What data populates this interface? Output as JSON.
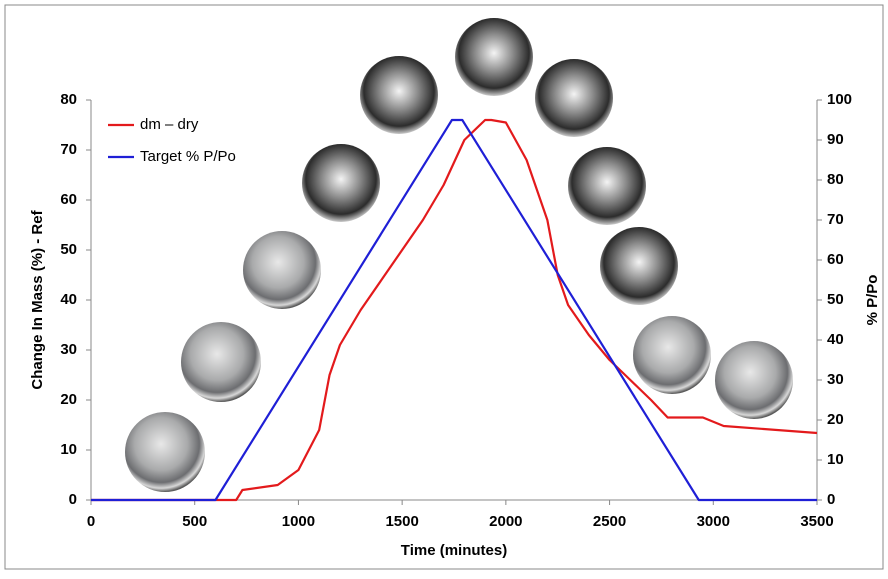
{
  "chart_data": {
    "type": "line",
    "xlabel": "Time (minutes)",
    "ylabel": "Change In Mass (%) - Ref",
    "y2label": "% P/Po",
    "xlim": [
      0,
      3500
    ],
    "xticks": [
      0,
      500,
      1000,
      1500,
      2000,
      2500,
      3000,
      3500
    ],
    "ylim": [
      0,
      80
    ],
    "yticks": [
      0,
      10,
      20,
      30,
      40,
      50,
      60,
      70,
      80
    ],
    "y2lim": [
      0,
      100
    ],
    "y2ticks": [
      0,
      10,
      20,
      30,
      40,
      50,
      60,
      70,
      80,
      90,
      100
    ],
    "grid": false,
    "legend": "upper left",
    "series": [
      {
        "name": "dm – dry",
        "color": "#e31a1c",
        "x": [
          0,
          700,
          730,
          900,
          1000,
          1100,
          1150,
          1200,
          1300,
          1400,
          1500,
          1600,
          1700,
          1800,
          1900,
          1930,
          2000,
          2100,
          2200,
          2250,
          2300,
          2400,
          2500,
          2600,
          2700,
          2780,
          2950,
          3050,
          3500
        ],
        "values": [
          0,
          0,
          2,
          3,
          6,
          14,
          25,
          31,
          38,
          44,
          50,
          56,
          63,
          72,
          76,
          76,
          75.5,
          68,
          56,
          45,
          39,
          33,
          28,
          24,
          20,
          16.5,
          16.5,
          14.8,
          13.4
        ]
      },
      {
        "name": "Target % P/Po",
        "color": "#1f1fd6",
        "axis": "y2",
        "x": [
          0,
          600,
          1740,
          1790,
          2930,
          3500
        ],
        "values": [
          0,
          0,
          95,
          95,
          0,
          0
        ]
      }
    ]
  }
}
